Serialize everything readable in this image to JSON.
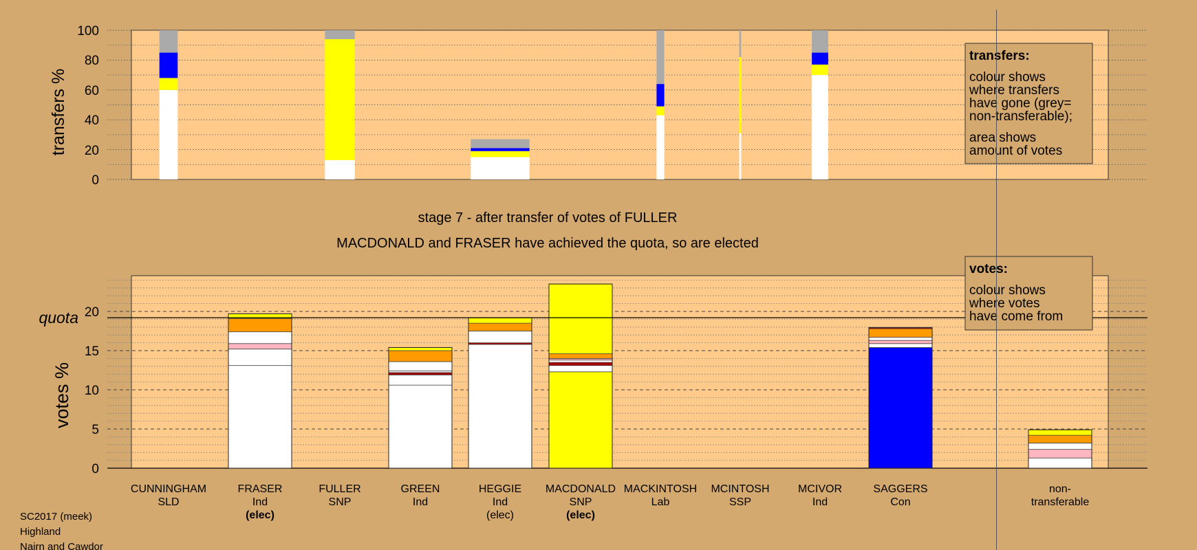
{
  "colors": {
    "background": "#D4A970",
    "plot_background": "#FFCA8A",
    "white": "#FFFFFF",
    "yellow": "#FFFF00",
    "blue": "#0000FF",
    "grey": "#AAAAAA",
    "orange": "#FF9A00",
    "pink": "#FFB6C1",
    "darkred": "#AA0000"
  },
  "transfers_chart": {
    "ylabel": "transfers %",
    "ticks": [
      "0",
      "20",
      "40",
      "60",
      "80",
      "100"
    ],
    "legend": {
      "title": "transfers:",
      "line1": "colour shows",
      "line2": "where transfers",
      "line3": "have gone (grey=",
      "line4": "non-transferable);",
      "line5": "area shows",
      "line6": "amount of votes"
    }
  },
  "stage_title": "stage 7 - after transfer of votes of FULLER",
  "stage_subtitle": "MACDONALD and FRASER have achieved the quota, so are elected",
  "votes_chart": {
    "ylabel": "votes %",
    "quota_label": "quota",
    "ticks": [
      "0",
      "5",
      "10",
      "15",
      "20"
    ],
    "legend": {
      "title": "votes:",
      "line1": "colour shows",
      "line2": "where votes",
      "line3": "have come from"
    }
  },
  "candidates": [
    {
      "name": "CUNNINGHAM",
      "party": "SLD",
      "status": ""
    },
    {
      "name": "FRASER",
      "party": "Ind",
      "status": "(elec)"
    },
    {
      "name": "FULLER",
      "party": "SNP",
      "status": ""
    },
    {
      "name": "GREEN",
      "party": "Ind",
      "status": ""
    },
    {
      "name": "HEGGIE",
      "party": "Ind",
      "status": "(elec)"
    },
    {
      "name": "MACDONALD",
      "party": "SNP",
      "status": "(elec)"
    },
    {
      "name": "MACKINTOSH",
      "party": "Lab",
      "status": ""
    },
    {
      "name": "MCINTOSH",
      "party": "SSP",
      "status": ""
    },
    {
      "name": "MCIVOR",
      "party": "Ind",
      "status": ""
    },
    {
      "name": "SAGGERS",
      "party": "Con",
      "status": ""
    }
  ],
  "nontransferable_label": {
    "line1": "non-",
    "line2": "transferable"
  },
  "footer": {
    "line1": "SC2017 (meek)",
    "line2": "Highland",
    "line3": "Nairn and Cawdor"
  },
  "chart_data": [
    {
      "type": "bar",
      "stacked": true,
      "title": "",
      "ylabel": "transfers %",
      "ylim": [
        0,
        100
      ],
      "categories": [
        "CUNNINGHAM",
        "FRASER",
        "FULLER",
        "GREEN",
        "HEGGIE",
        "MACDONALD",
        "MACKINTOSH",
        "MCINTOSH",
        "MCIVOR",
        "SAGGERS"
      ],
      "relative_width": [
        0.95,
        0,
        1.55,
        0,
        3.05,
        0,
        0.4,
        0.1,
        0.85,
        0
      ],
      "stacks": [
        [
          {
            "color": "white",
            "value": 60
          },
          {
            "color": "yellow",
            "value": 8
          },
          {
            "color": "blue",
            "value": 17
          },
          {
            "color": "grey",
            "value": 15
          }
        ],
        [],
        [
          {
            "color": "white",
            "value": 13
          },
          {
            "color": "yellow",
            "value": 81
          },
          {
            "color": "grey",
            "value": 6
          }
        ],
        [],
        [
          {
            "color": "white",
            "value": 15
          },
          {
            "color": "yellow",
            "value": 4
          },
          {
            "color": "blue",
            "value": 2
          },
          {
            "color": "grey",
            "value": 6
          }
        ],
        [],
        [
          {
            "color": "white",
            "value": 43
          },
          {
            "color": "yellow",
            "value": 6
          },
          {
            "color": "blue",
            "value": 15
          },
          {
            "color": "grey",
            "value": 36
          }
        ],
        [
          {
            "color": "white",
            "value": 31
          },
          {
            "color": "yellow",
            "value": 51
          },
          {
            "color": "grey",
            "value": 18
          }
        ],
        [
          {
            "color": "white",
            "value": 70
          },
          {
            "color": "yellow",
            "value": 7
          },
          {
            "color": "blue",
            "value": 8
          },
          {
            "color": "grey",
            "value": 15
          }
        ],
        []
      ]
    },
    {
      "type": "bar",
      "stacked": true,
      "title": "stage 7 - after transfer of votes of FULLER",
      "ylabel": "votes %",
      "ylim": [
        0,
        25
      ],
      "quota": 19.2,
      "categories": [
        "CUNNINGHAM",
        "FRASER",
        "FULLER",
        "GREEN",
        "HEGGIE",
        "MACDONALD",
        "MACKINTOSH",
        "MCINTOSH",
        "MCIVOR",
        "SAGGERS",
        "non-transferable"
      ],
      "stacks": [
        [],
        [
          {
            "color": "white",
            "value": 13.1
          },
          {
            "color": "white",
            "value": 2.1
          },
          {
            "color": "pink",
            "value": 0.7
          },
          {
            "color": "white",
            "value": 1.5
          },
          {
            "color": "orange",
            "value": 1.7
          },
          {
            "color": "yellow",
            "value": 0.6
          }
        ],
        [],
        [
          {
            "color": "white",
            "value": 10.6
          },
          {
            "color": "white",
            "value": 1.3
          },
          {
            "color": "darkred",
            "value": 0.3
          },
          {
            "color": "white",
            "value": 0.2
          },
          {
            "color": "white",
            "value": 1.2
          },
          {
            "color": "orange",
            "value": 1.4
          },
          {
            "color": "yellow",
            "value": 0.4
          }
        ],
        [
          {
            "color": "white",
            "value": 15.8
          },
          {
            "color": "darkred",
            "value": 0.2
          },
          {
            "color": "white",
            "value": 1.5
          },
          {
            "color": "orange",
            "value": 1.0
          },
          {
            "color": "yellow",
            "value": 0.7
          }
        ],
        [
          {
            "color": "yellow",
            "value": 12.3
          },
          {
            "color": "white",
            "value": 0.8
          },
          {
            "color": "darkred",
            "value": 0.4
          },
          {
            "color": "white",
            "value": 0.3
          },
          {
            "color": "pink",
            "value": 0.2
          },
          {
            "color": "orange",
            "value": 0.6
          },
          {
            "color": "yellow",
            "value": 8.9
          }
        ],
        [],
        [],
        [],
        [
          {
            "color": "blue",
            "value": 15.4
          },
          {
            "color": "white",
            "value": 0.5
          },
          {
            "color": "pink",
            "value": 0.4
          },
          {
            "color": "white",
            "value": 0.4
          },
          {
            "color": "orange",
            "value": 1.1
          },
          {
            "color": "darkred",
            "value": 0.15
          }
        ],
        [
          {
            "color": "white",
            "value": 1.3
          },
          {
            "color": "pink",
            "value": 1.1
          },
          {
            "color": "white",
            "value": 0.8
          },
          {
            "color": "orange",
            "value": 1.0
          },
          {
            "color": "yellow",
            "value": 0.7
          }
        ]
      ]
    }
  ]
}
